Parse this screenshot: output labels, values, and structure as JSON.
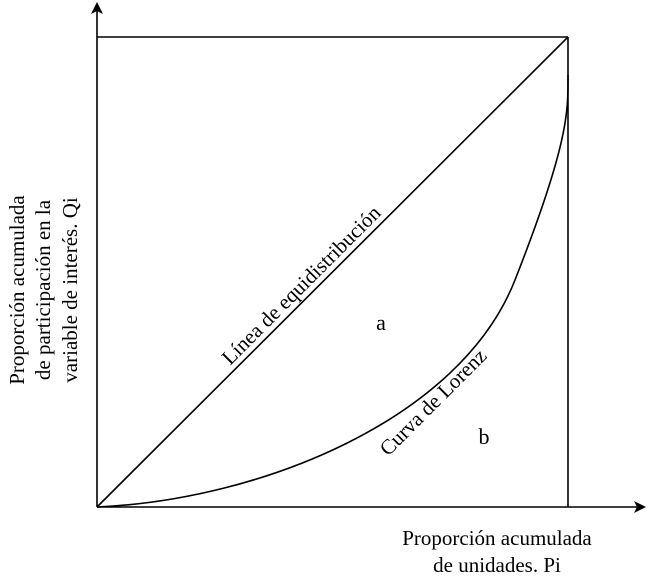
{
  "diagram": {
    "y_axis_label": {
      "line1": "Proporción acumulada",
      "line2": "de participación en la",
      "line3": "variable de interés. Qi"
    },
    "x_axis_label": {
      "line1": "Proporción acumulada",
      "line2": "de unidades. Pi"
    },
    "equality_line_label": "Línea de equidistribución",
    "lorenz_curve_label": "Curva de Lorenz",
    "region_a": "a",
    "region_b": "b"
  }
}
